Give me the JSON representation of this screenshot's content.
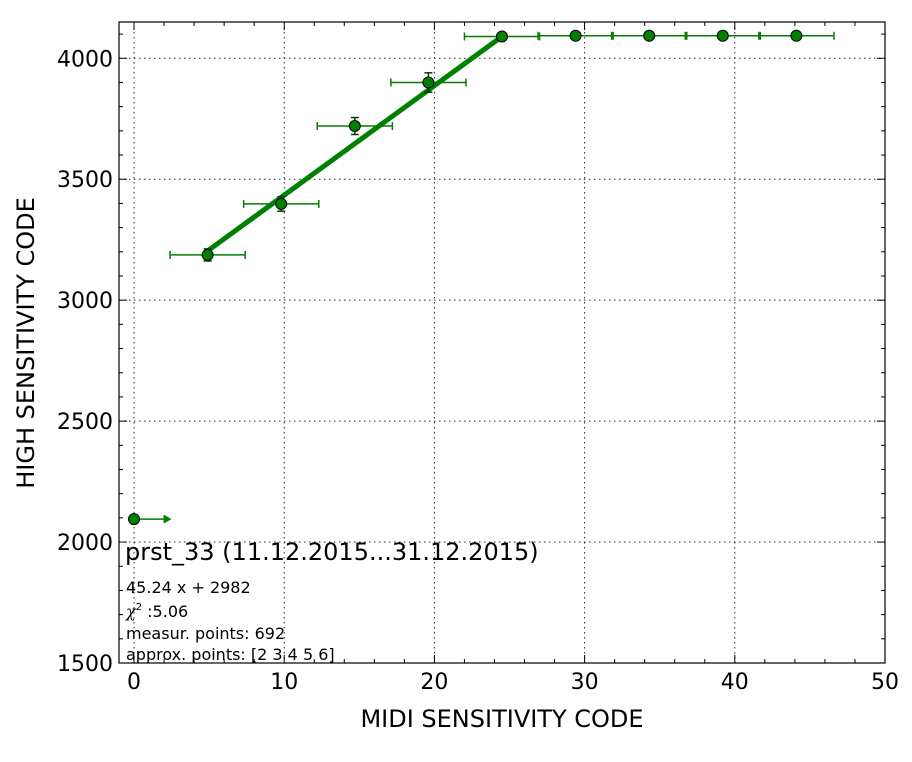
{
  "chart_data": {
    "type": "scatter",
    "title": "",
    "xlabel": "MIDI SENSITIVITY CODE",
    "ylabel": "HIGH SENSITIVITY CODE",
    "xlim": [
      -1,
      50
    ],
    "ylim": [
      1500,
      4150
    ],
    "xticks": [
      0,
      10,
      20,
      30,
      40,
      50
    ],
    "yticks": [
      1500,
      2000,
      2500,
      3000,
      3500,
      4000
    ],
    "grid": true,
    "color": "#007f00",
    "points": [
      {
        "x": 4.9,
        "y": 3187,
        "xerr": 2.5,
        "yerr": 25
      },
      {
        "x": 9.8,
        "y": 3398,
        "xerr": 2.5,
        "yerr": 30
      },
      {
        "x": 14.7,
        "y": 3720,
        "xerr": 2.5,
        "yerr": 35
      },
      {
        "x": 19.6,
        "y": 3900,
        "xerr": 2.5,
        "yerr": 40
      },
      {
        "x": 24.5,
        "y": 4090,
        "xerr": 2.5,
        "yerr": 0
      },
      {
        "x": 29.4,
        "y": 4093,
        "xerr": 2.5,
        "yerr": 0
      },
      {
        "x": 34.3,
        "y": 4093,
        "xerr": 2.5,
        "yerr": 0
      },
      {
        "x": 39.2,
        "y": 4093,
        "xerr": 2.5,
        "yerr": 0
      },
      {
        "x": 44.1,
        "y": 4093,
        "xerr": 2.5,
        "yerr": 0
      }
    ],
    "arrow_point": {
      "x": 0,
      "y": 2095,
      "x_to": 2.5
    },
    "fit": {
      "slope": 45.24,
      "intercept": 2982,
      "x_range": [
        4.9,
        24.5
      ]
    },
    "annotations": {
      "title": "prst_33 (11.12.2015...31.12.2015)",
      "equation": "45.24 x + 2982",
      "chi_symbol": "χ",
      "chi_sup": "2",
      "chi_value": " :5.06",
      "measur": "measur. points: 692",
      "approx": "approx. points: [2 3 4 5 6]"
    }
  }
}
